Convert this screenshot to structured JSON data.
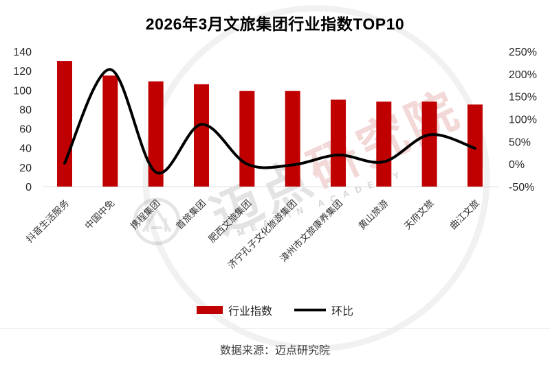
{
  "title": "2026年3月文旅集团行业指数TOP10",
  "watermark": {
    "brand_cn_1": "迈点",
    "brand_cn_2": "研究院",
    "brand_en": "MEADIN ACADEMY"
  },
  "legend": {
    "bar_label": "行业指数",
    "line_label": "环比"
  },
  "footer": {
    "source": "数据来源：迈点研究院"
  },
  "chart_data": {
    "type": "bar",
    "title": "2026年3月文旅集团行业指数TOP10",
    "categories": [
      "抖音生活服务",
      "中国中免",
      "携程集团",
      "首旅集团",
      "肥西文旅集团",
      "济宁孔子文化旅游集团",
      "漳州市文旅康养集团",
      "黄山旅游",
      "天府文旅",
      "曲江文旅"
    ],
    "series": [
      {
        "name": "行业指数",
        "type": "bar",
        "axis": "left",
        "color": "#c00000",
        "values": [
          130,
          115,
          109,
          106,
          99,
          99,
          90,
          88,
          88,
          85
        ]
      },
      {
        "name": "环比",
        "type": "line",
        "axis": "right",
        "color": "#000000",
        "unit": "%",
        "values": [
          2,
          210,
          -18,
          88,
          0,
          -2,
          20,
          5,
          65,
          35
        ]
      }
    ],
    "left_axis": {
      "min": 0,
      "max": 140,
      "step": 20,
      "ticks": [
        "0",
        "20",
        "40",
        "60",
        "80",
        "100",
        "120",
        "140"
      ]
    },
    "right_axis": {
      "min": -50,
      "max": 250,
      "step": 50,
      "ticks": [
        "-50%",
        "0%",
        "50%",
        "100%",
        "150%",
        "200%",
        "250%"
      ]
    },
    "grid": "baseline-only",
    "legend_position": "bottom"
  }
}
